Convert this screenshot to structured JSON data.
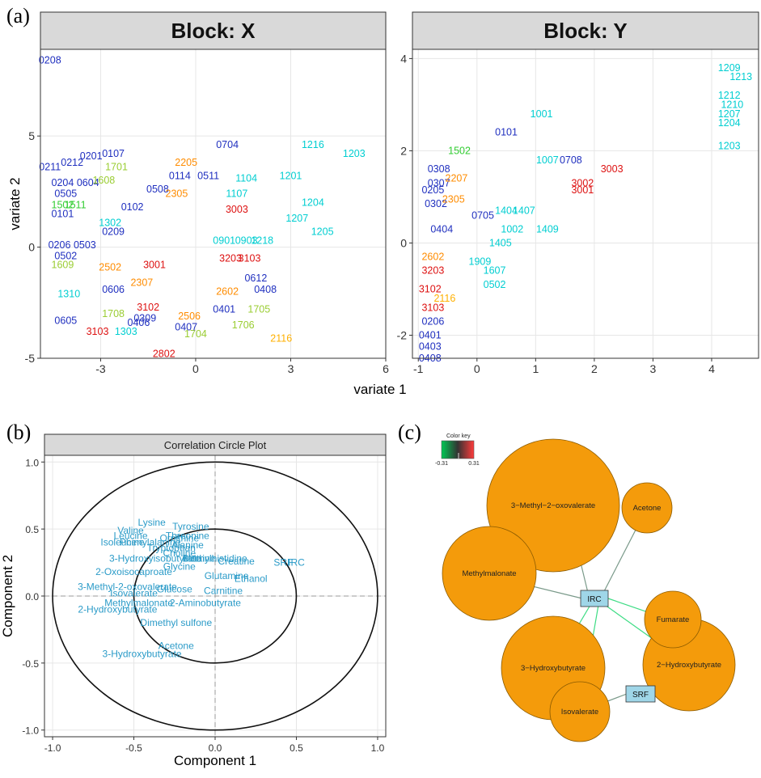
{
  "panel_labels": {
    "a": "(a)",
    "b": "(b)",
    "c": "(c)"
  },
  "chart_data": [
    {
      "id": "block-x",
      "type": "scatter",
      "title": "Block: X",
      "xlabel": "variate 1",
      "ylabel": "variate 2",
      "xlim": [
        -4.9,
        6.0
      ],
      "ylim": [
        -5.0,
        8.9
      ],
      "xticks": [
        -3,
        0,
        3,
        6
      ],
      "yticks": [
        -5,
        0,
        5
      ],
      "points": [
        {
          "label": "0208",
          "x": -4.6,
          "y": 8.4,
          "color": "#1f2fbf"
        },
        {
          "label": "0211",
          "x": -4.6,
          "y": 3.6,
          "color": "#1f2fbf"
        },
        {
          "label": "0212",
          "x": -3.9,
          "y": 3.8,
          "color": "#1f2fbf"
        },
        {
          "label": "0201",
          "x": -3.3,
          "y": 4.1,
          "color": "#1f2fbf"
        },
        {
          "label": "0107",
          "x": -2.6,
          "y": 4.2,
          "color": "#1f2fbf"
        },
        {
          "label": "1701",
          "x": -2.5,
          "y": 3.6,
          "color": "#9acd32"
        },
        {
          "label": "0204",
          "x": -4.2,
          "y": 2.9,
          "color": "#1f2fbf"
        },
        {
          "label": "0604",
          "x": -3.4,
          "y": 2.9,
          "color": "#1f2fbf"
        },
        {
          "label": "0505",
          "x": -4.1,
          "y": 2.4,
          "color": "#1f2fbf"
        },
        {
          "label": "1608",
          "x": -2.9,
          "y": 3.0,
          "color": "#9acd32"
        },
        {
          "label": "1502",
          "x": -4.2,
          "y": 1.9,
          "color": "#32cd32"
        },
        {
          "label": "1511",
          "x": -3.8,
          "y": 1.9,
          "color": "#32cd32"
        },
        {
          "label": "0101",
          "x": -4.2,
          "y": 1.5,
          "color": "#1f2fbf"
        },
        {
          "label": "0508",
          "x": -1.2,
          "y": 2.6,
          "color": "#1f2fbf"
        },
        {
          "label": "0114",
          "x": -0.5,
          "y": 3.2,
          "color": "#1f2fbf"
        },
        {
          "label": "0511",
          "x": 0.4,
          "y": 3.2,
          "color": "#1f2fbf"
        },
        {
          "label": "2205",
          "x": -0.3,
          "y": 3.8,
          "color": "#ff8c00"
        },
        {
          "label": "0704",
          "x": 1.0,
          "y": 4.6,
          "color": "#1f2fbf"
        },
        {
          "label": "1216",
          "x": 3.7,
          "y": 4.6,
          "color": "#00ced1"
        },
        {
          "label": "1203",
          "x": 5.0,
          "y": 4.2,
          "color": "#00ced1"
        },
        {
          "label": "1201",
          "x": 3.0,
          "y": 3.2,
          "color": "#00ced1"
        },
        {
          "label": "1104",
          "x": 1.6,
          "y": 3.1,
          "color": "#00ced1"
        },
        {
          "label": "1302",
          "x": -2.7,
          "y": 1.1,
          "color": "#00ced1"
        },
        {
          "label": "0209",
          "x": -2.6,
          "y": 0.7,
          "color": "#1f2fbf"
        },
        {
          "label": "0206",
          "x": -4.3,
          "y": 0.1,
          "color": "#1f2fbf"
        },
        {
          "label": "0503",
          "x": -3.5,
          "y": 0.1,
          "color": "#1f2fbf"
        },
        {
          "label": "0502",
          "x": -4.1,
          "y": -0.4,
          "color": "#1f2fbf"
        },
        {
          "label": "1609",
          "x": -4.2,
          "y": -0.8,
          "color": "#9acd32"
        },
        {
          "label": "1310",
          "x": -4.0,
          "y": -2.1,
          "color": "#00ced1"
        },
        {
          "label": "0605",
          "x": -4.1,
          "y": -3.3,
          "color": "#1f2fbf"
        },
        {
          "label": "3103",
          "x": -3.1,
          "y": -3.8,
          "color": "#dd1111"
        },
        {
          "label": "1708",
          "x": -2.6,
          "y": -3.0,
          "color": "#9acd32"
        },
        {
          "label": "1303",
          "x": -2.2,
          "y": -3.8,
          "color": "#00ced1"
        },
        {
          "label": "0406",
          "x": -1.8,
          "y": -3.4,
          "color": "#1f2fbf"
        },
        {
          "label": "2802",
          "x": -1.0,
          "y": -4.8,
          "color": "#dd1111"
        },
        {
          "label": "1704",
          "x": 0.0,
          "y": -3.9,
          "color": "#9acd32"
        },
        {
          "label": "0407",
          "x": -0.3,
          "y": -3.6,
          "color": "#1f2fbf"
        },
        {
          "label": "1706",
          "x": 1.5,
          "y": -3.5,
          "color": "#9acd32"
        },
        {
          "label": "2116",
          "x": 2.7,
          "y": -4.1,
          "color": "#ffb000"
        },
        {
          "label": "1705",
          "x": 2.0,
          "y": -2.8,
          "color": "#9acd32"
        },
        {
          "label": "0401",
          "x": 0.9,
          "y": -2.8,
          "color": "#1f2fbf"
        },
        {
          "label": "0408",
          "x": 2.2,
          "y": -1.9,
          "color": "#1f2fbf"
        },
        {
          "label": "0612",
          "x": 1.9,
          "y": -1.4,
          "color": "#1f2fbf"
        },
        {
          "label": "1205",
          "x": 4.0,
          "y": 0.7,
          "color": "#00ced1"
        },
        {
          "label": "1204",
          "x": 3.7,
          "y": 2.0,
          "color": "#00ced1"
        },
        {
          "label": "1207",
          "x": 3.2,
          "y": 1.3,
          "color": "#00ced1"
        },
        {
          "label": "1218",
          "x": 2.1,
          "y": 0.3,
          "color": "#00ced1"
        },
        {
          "label": "3003",
          "x": 1.3,
          "y": 1.7,
          "color": "#dd1111"
        },
        {
          "label": "3103",
          "x": 1.7,
          "y": -0.5,
          "color": "#dd1111"
        },
        {
          "label": "3203",
          "x": 1.1,
          "y": -0.5,
          "color": "#dd1111"
        },
        {
          "label": "3001",
          "x": -1.3,
          "y": -0.8,
          "color": "#dd1111"
        },
        {
          "label": "2502",
          "x": -2.7,
          "y": -0.9,
          "color": "#ff8c00"
        },
        {
          "label": "2307",
          "x": -1.7,
          "y": -1.6,
          "color": "#ff8c00"
        },
        {
          "label": "0606",
          "x": -2.6,
          "y": -1.9,
          "color": "#1f2fbf"
        },
        {
          "label": "2305",
          "x": -0.6,
          "y": 2.4,
          "color": "#ff8c00"
        },
        {
          "label": "0901",
          "x": 0.9,
          "y": 0.3,
          "color": "#00ced1"
        },
        {
          "label": "0903",
          "x": 1.6,
          "y": 0.3,
          "color": "#00ced1"
        },
        {
          "label": "1107",
          "x": 1.3,
          "y": 2.4,
          "color": "#00ced1"
        },
        {
          "label": "0102",
          "x": -2.0,
          "y": 1.8,
          "color": "#1f2fbf"
        },
        {
          "label": "0309",
          "x": -1.6,
          "y": -3.2,
          "color": "#1f2fbf"
        },
        {
          "label": "3102",
          "x": -1.5,
          "y": -2.7,
          "color": "#dd1111"
        },
        {
          "label": "2506",
          "x": -0.2,
          "y": -3.1,
          "color": "#ff8c00"
        },
        {
          "label": "2602",
          "x": 1.0,
          "y": -2.0,
          "color": "#ff8c00"
        }
      ]
    },
    {
      "id": "block-y",
      "type": "scatter",
      "title": "Block: Y",
      "xlabel": "variate 1",
      "ylabel": "",
      "xlim": [
        -1.1,
        4.8
      ],
      "ylim": [
        -2.5,
        4.2
      ],
      "xticks": [
        -1,
        0,
        1,
        2,
        3,
        4
      ],
      "yticks": [
        -2,
        0,
        2,
        4
      ],
      "points": [
        {
          "label": "1209",
          "x": 4.3,
          "y": 3.8,
          "color": "#00ced1"
        },
        {
          "label": "1213",
          "x": 4.5,
          "y": 3.6,
          "color": "#00ced1"
        },
        {
          "label": "1212",
          "x": 4.3,
          "y": 3.2,
          "color": "#00ced1"
        },
        {
          "label": "1210",
          "x": 4.35,
          "y": 3.0,
          "color": "#00ced1"
        },
        {
          "label": "1207",
          "x": 4.3,
          "y": 2.8,
          "color": "#00ced1"
        },
        {
          "label": "1204",
          "x": 4.3,
          "y": 2.6,
          "color": "#00ced1"
        },
        {
          "label": "1203",
          "x": 4.3,
          "y": 2.1,
          "color": "#00ced1"
        },
        {
          "label": "1001",
          "x": 1.1,
          "y": 2.8,
          "color": "#00ced1"
        },
        {
          "label": "0101",
          "x": 0.5,
          "y": 2.4,
          "color": "#1f2fbf"
        },
        {
          "label": "1502",
          "x": -0.3,
          "y": 2.0,
          "color": "#32cd32"
        },
        {
          "label": "1007",
          "x": 1.2,
          "y": 1.8,
          "color": "#00ced1"
        },
        {
          "label": "0708",
          "x": 1.6,
          "y": 1.8,
          "color": "#1f2fbf"
        },
        {
          "label": "3003",
          "x": 2.3,
          "y": 1.6,
          "color": "#dd1111"
        },
        {
          "label": "3002",
          "x": 1.8,
          "y": 1.3,
          "color": "#dd1111"
        },
        {
          "label": "3001",
          "x": 1.8,
          "y": 1.15,
          "color": "#dd1111"
        },
        {
          "label": "1407",
          "x": 0.8,
          "y": 0.7,
          "color": "#00ced1"
        },
        {
          "label": "1404",
          "x": 0.5,
          "y": 0.7,
          "color": "#00ced1"
        },
        {
          "label": "1002",
          "x": 0.6,
          "y": 0.3,
          "color": "#00ced1"
        },
        {
          "label": "1409",
          "x": 1.2,
          "y": 0.3,
          "color": "#00ced1"
        },
        {
          "label": "1405",
          "x": 0.4,
          "y": 0.0,
          "color": "#00ced1"
        },
        {
          "label": "0502",
          "x": 0.3,
          "y": -0.9,
          "color": "#00ced1"
        },
        {
          "label": "0401",
          "x": -0.8,
          "y": -2.0,
          "color": "#1f2fbf"
        },
        {
          "label": "0403",
          "x": -0.8,
          "y": -2.25,
          "color": "#1f2fbf"
        },
        {
          "label": "0408",
          "x": -0.8,
          "y": -2.5,
          "color": "#1f2fbf"
        },
        {
          "label": "0206",
          "x": -0.75,
          "y": -1.7,
          "color": "#1f2fbf"
        },
        {
          "label": "0308",
          "x": -0.65,
          "y": 1.6,
          "color": "#1f2fbf"
        },
        {
          "label": "0307",
          "x": -0.65,
          "y": 1.3,
          "color": "#1f2fbf"
        },
        {
          "label": "2207",
          "x": -0.35,
          "y": 1.4,
          "color": "#ff8c00"
        },
        {
          "label": "0205",
          "x": -0.75,
          "y": 1.15,
          "color": "#1f2fbf"
        },
        {
          "label": "0302",
          "x": -0.7,
          "y": 0.85,
          "color": "#1f2fbf"
        },
        {
          "label": "2305",
          "x": -0.4,
          "y": 0.95,
          "color": "#ff8c00"
        },
        {
          "label": "0705",
          "x": 0.1,
          "y": 0.6,
          "color": "#1f2fbf"
        },
        {
          "label": "1909",
          "x": 0.05,
          "y": -0.4,
          "color": "#00ced1"
        },
        {
          "label": "1607",
          "x": 0.3,
          "y": -0.6,
          "color": "#00ced1"
        },
        {
          "label": "3203",
          "x": -0.75,
          "y": -0.6,
          "color": "#dd1111"
        },
        {
          "label": "3102",
          "x": -0.8,
          "y": -1.0,
          "color": "#dd1111"
        },
        {
          "label": "3103",
          "x": -0.75,
          "y": -1.4,
          "color": "#dd1111"
        },
        {
          "label": "2116",
          "x": -0.55,
          "y": -1.2,
          "color": "#ffb000"
        },
        {
          "label": "2602",
          "x": -0.75,
          "y": -0.3,
          "color": "#ff8c00"
        },
        {
          "label": "0404",
          "x": -0.6,
          "y": 0.3,
          "color": "#1f2fbf"
        }
      ]
    },
    {
      "id": "correlation-circle",
      "type": "scatter",
      "title": "Correlation Circle Plot",
      "xlabel": "Component  1",
      "ylabel": "Component  2",
      "xlim": [
        -1.05,
        1.05
      ],
      "ylim": [
        -1.05,
        1.05
      ],
      "xticks": [
        -1.0,
        -0.5,
        0.0,
        0.5,
        1.0
      ],
      "yticks": [
        -1.0,
        -0.5,
        0.0,
        0.5,
        1.0
      ],
      "tick_labels_x": [
        "-1.0",
        "-0.5",
        "0.0",
        "0.5",
        "1.0"
      ],
      "tick_labels_y": [
        "-1.0",
        "-0.5",
        "0.0",
        "0.5",
        "1.0"
      ],
      "circles": [
        1.0,
        0.5
      ],
      "points": [
        {
          "label": "Lysine",
          "x": -0.39,
          "y": 0.55,
          "color": "#2b9bc8"
        },
        {
          "label": "Tyrosine",
          "x": -0.15,
          "y": 0.52,
          "color": "#2b9bc8"
        },
        {
          "label": "Valine",
          "x": -0.52,
          "y": 0.49,
          "color": "#2b9bc8"
        },
        {
          "label": "Leucine",
          "x": -0.52,
          "y": 0.45,
          "color": "#2b9bc8"
        },
        {
          "label": "Threonine",
          "x": -0.17,
          "y": 0.45,
          "color": "#2b9bc8"
        },
        {
          "label": "Ornithine",
          "x": -0.22,
          "y": 0.43,
          "color": "#2b9bc8"
        },
        {
          "label": "Isoleucine",
          "x": -0.57,
          "y": 0.4,
          "color": "#2b9bc8"
        },
        {
          "label": "Phenylalanine",
          "x": -0.4,
          "y": 0.4,
          "color": "#2b9bc8"
        },
        {
          "label": "Alanine",
          "x": -0.17,
          "y": 0.38,
          "color": "#2b9bc8"
        },
        {
          "label": "Tryptophan",
          "x": -0.27,
          "y": 0.36,
          "color": "#2b9bc8"
        },
        {
          "label": "Choline",
          "x": -0.22,
          "y": 0.32,
          "color": "#2b9bc8"
        },
        {
          "label": "3-Hydroxyisobutyrate",
          "x": -0.37,
          "y": 0.28,
          "color": "#2b9bc8"
        },
        {
          "label": "Betaine",
          "x": -0.1,
          "y": 0.28,
          "color": "#2b9bc8"
        },
        {
          "label": "Methylhistidine",
          "x": 0.0,
          "y": 0.28,
          "color": "#2b9bc8"
        },
        {
          "label": "Creatine",
          "x": 0.13,
          "y": 0.26,
          "color": "#2b9bc8"
        },
        {
          "label": "2-Oxoisocaproate",
          "x": -0.5,
          "y": 0.18,
          "color": "#2b9bc8"
        },
        {
          "label": "Glycine",
          "x": -0.22,
          "y": 0.22,
          "color": "#2b9bc8"
        },
        {
          "label": "Glutamine",
          "x": 0.07,
          "y": 0.15,
          "color": "#2b9bc8"
        },
        {
          "label": "Ethanol",
          "x": 0.22,
          "y": 0.13,
          "color": "#2b9bc8"
        },
        {
          "label": "3-Methyl-2-oxovalerate",
          "x": -0.54,
          "y": 0.07,
          "color": "#2b9bc8"
        },
        {
          "label": "Isovalerate",
          "x": -0.5,
          "y": 0.02,
          "color": "#2b9bc8"
        },
        {
          "label": "Glucose",
          "x": -0.25,
          "y": 0.05,
          "color": "#2b9bc8"
        },
        {
          "label": "Carnitine",
          "x": 0.05,
          "y": 0.04,
          "color": "#2b9bc8"
        },
        {
          "label": "Methylmalonate",
          "x": -0.47,
          "y": -0.05,
          "color": "#2b9bc8"
        },
        {
          "label": "2-Aminobutyrate",
          "x": -0.06,
          "y": -0.05,
          "color": "#2b9bc8"
        },
        {
          "label": "2-Hydroxybutyrate",
          "x": -0.6,
          "y": -0.1,
          "color": "#2b9bc8"
        },
        {
          "label": "Dimethyl sulfone",
          "x": -0.24,
          "y": -0.2,
          "color": "#2b9bc8"
        },
        {
          "label": "Acetone",
          "x": -0.24,
          "y": -0.37,
          "color": "#2b9bc8"
        },
        {
          "label": "3-Hydroxybutyrate",
          "x": -0.45,
          "y": -0.43,
          "color": "#2b9bc8"
        },
        {
          "label": "SRF",
          "x": 0.42,
          "y": 0.25,
          "color": "#f0883a"
        },
        {
          "label": "IRC",
          "x": 0.5,
          "y": 0.25,
          "color": "#f0883a"
        }
      ]
    }
  ],
  "network": {
    "color_key": {
      "title": "Color key",
      "min": "-0.31",
      "max": "0.31"
    },
    "metabolite_nodes": [
      {
        "id": "n-3m2o",
        "label": "3−Methyl−2−oxovalerate"
      },
      {
        "id": "n-acetone",
        "label": "Acetone"
      },
      {
        "id": "n-methylmalonate",
        "label": "Methylmalonate"
      },
      {
        "id": "n-fumarate",
        "label": "Fumarate"
      },
      {
        "id": "n-3hb",
        "label": "3−Hydroxybutyrate"
      },
      {
        "id": "n-2hb",
        "label": "2−Hydroxybutyrate"
      },
      {
        "id": "n-isovalerate",
        "label": "Isovalerate"
      }
    ],
    "response_nodes": [
      {
        "id": "n-irc",
        "label": "IRC"
      },
      {
        "id": "n-srf",
        "label": "SRF"
      }
    ]
  }
}
